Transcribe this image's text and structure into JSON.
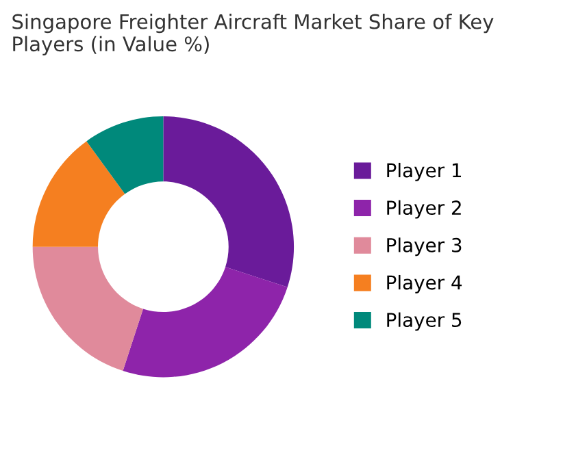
{
  "chart_data": {
    "type": "donut",
    "title": "Singapore Freighter Aircraft Market Share of Key Players (in Value %)",
    "categories": [
      "Player 1",
      "Player 2",
      "Player 3",
      "Player 4",
      "Player 5"
    ],
    "values": [
      30,
      25,
      20,
      15,
      10
    ],
    "colors": [
      "#6a1b9a",
      "#8e24aa",
      "#e08a9b",
      "#f57f20",
      "#00897b"
    ],
    "legend": "right"
  }
}
